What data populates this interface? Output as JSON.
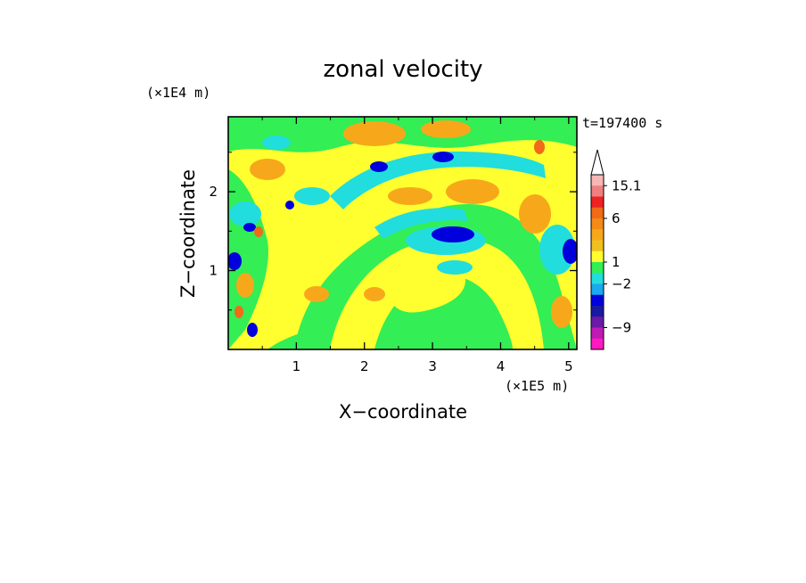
{
  "chart_data": {
    "type": "heatmap",
    "title": "zonal velocity",
    "xlabel": "X−coordinate",
    "ylabel": "Z−coordinate",
    "x_unit": "(×1E5 m)",
    "y_unit": "(×1E4 m)",
    "time_label": "t=197400 s",
    "xlim": [
      0,
      5.12
    ],
    "ylim": [
      0,
      2.95
    ],
    "x_ticks": [
      "1",
      "2",
      "3",
      "4",
      "5"
    ],
    "y_ticks": [
      "1",
      "2"
    ],
    "colorbar": {
      "labels": [
        "15.1",
        "6",
        "1",
        "−2",
        "−9"
      ],
      "colors": [
        "#ffffff",
        "#f7b7b4",
        "#f08080",
        "#ee2222",
        "#f06a18",
        "#f48a18",
        "#f7a81a",
        "#f0c020",
        "#ffff30",
        "#33ee55",
        "#22dddd",
        "#1aa8ee",
        "#0000dd",
        "#1a1aa0",
        "#6a1aa8",
        "#c01ab4",
        "#ff1ac0"
      ]
    }
  }
}
